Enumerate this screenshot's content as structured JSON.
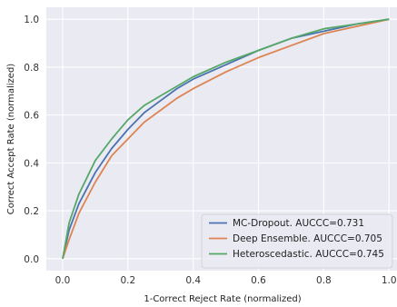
{
  "chart_data": {
    "type": "line",
    "title": "",
    "xlabel": "1-Correct Reject Rate (normalized)",
    "ylabel": "Correct Accept Rate (normalized)",
    "xlim": [
      -0.05,
      1.03
    ],
    "ylim": [
      -0.05,
      1.05
    ],
    "grid": true,
    "legend_placement": "lower-right",
    "background_color": "#EAEAF2",
    "grid_color": "#FFFFFF",
    "x_ticks": [
      "0.0",
      "0.2",
      "0.4",
      "0.6",
      "0.8",
      "1.0"
    ],
    "y_ticks": [
      "0.0",
      "0.2",
      "0.4",
      "0.6",
      "0.8",
      "1.0"
    ],
    "series": [
      {
        "name": "MC-Dropout. AUCCC=0.731",
        "color": "#4C72B0",
        "x": [
          0.0,
          0.02,
          0.05,
          0.1,
          0.15,
          0.2,
          0.25,
          0.3,
          0.35,
          0.4,
          0.5,
          0.6,
          0.7,
          0.8,
          0.9,
          1.0
        ],
        "y": [
          0.0,
          0.12,
          0.23,
          0.36,
          0.46,
          0.54,
          0.61,
          0.66,
          0.71,
          0.75,
          0.81,
          0.87,
          0.92,
          0.95,
          0.98,
          1.0
        ]
      },
      {
        "name": "Deep Ensemble. AUCCC=0.705",
        "color": "#DD8452",
        "x": [
          0.0,
          0.02,
          0.05,
          0.1,
          0.15,
          0.2,
          0.25,
          0.3,
          0.35,
          0.4,
          0.5,
          0.6,
          0.7,
          0.8,
          0.9,
          1.0
        ],
        "y": [
          0.0,
          0.08,
          0.19,
          0.32,
          0.43,
          0.5,
          0.57,
          0.62,
          0.67,
          0.71,
          0.78,
          0.84,
          0.89,
          0.94,
          0.97,
          1.0
        ]
      },
      {
        "name": "Heteroscedastic. AUCCC=0.745",
        "color": "#55A868",
        "x": [
          0.0,
          0.02,
          0.05,
          0.1,
          0.15,
          0.2,
          0.25,
          0.3,
          0.35,
          0.4,
          0.5,
          0.6,
          0.7,
          0.8,
          0.9,
          1.0
        ],
        "y": [
          0.0,
          0.15,
          0.27,
          0.41,
          0.5,
          0.58,
          0.64,
          0.68,
          0.72,
          0.76,
          0.82,
          0.87,
          0.92,
          0.96,
          0.98,
          1.0
        ]
      }
    ]
  }
}
